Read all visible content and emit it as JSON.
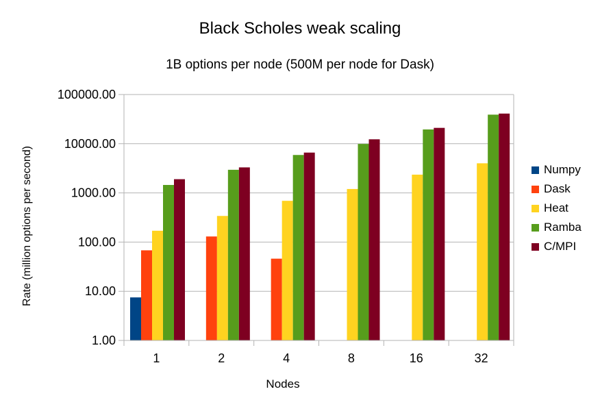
{
  "chart_data": {
    "type": "bar",
    "title": "Black Scholes weak scaling",
    "subtitle": "1B options per node (500M per node for Dask)",
    "xlabel": "Nodes",
    "ylabel": "Rate (million options per second)",
    "y_scale": "log",
    "ylim": [
      1,
      100000
    ],
    "y_ticks": [
      "1.00",
      "10.00",
      "100.00",
      "1000.00",
      "10000.00",
      "100000.00"
    ],
    "grid": true,
    "legend_position": "right",
    "categories": [
      "1",
      "2",
      "4",
      "8",
      "16",
      "32"
    ],
    "series": [
      {
        "name": "Numpy",
        "color": "#004586",
        "values": [
          7.5,
          null,
          null,
          null,
          null,
          null
        ]
      },
      {
        "name": "Dask",
        "color": "#ff420e",
        "values": [
          68,
          130,
          46,
          null,
          null,
          null
        ]
      },
      {
        "name": "Heat",
        "color": "#ffd320",
        "values": [
          170,
          340,
          690,
          1200,
          2350,
          4000
        ]
      },
      {
        "name": "Ramba",
        "color": "#579d1c",
        "values": [
          1450,
          2950,
          5900,
          9900,
          19500,
          39000
        ]
      },
      {
        "name": "C/MPI",
        "color": "#7e0021",
        "values": [
          1900,
          3300,
          6600,
          12300,
          21000,
          41000
        ]
      }
    ]
  }
}
